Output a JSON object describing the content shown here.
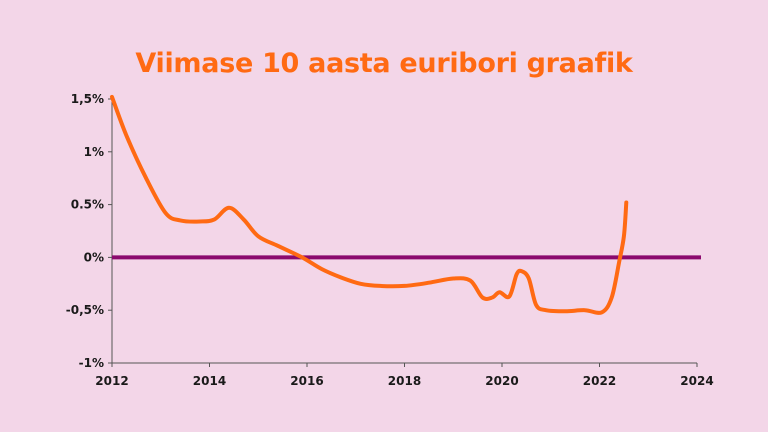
{
  "chart_data": {
    "type": "line",
    "title": "Viimase 10 aasta euribori graafik",
    "xlabel": "",
    "ylabel": "",
    "xlim": [
      2012,
      2024
    ],
    "ylim": [
      -1,
      1.5
    ],
    "x_ticks": [
      2012,
      2014,
      2016,
      2018,
      2020,
      2022,
      2024
    ],
    "x_tick_labels": [
      "2012",
      "2014",
      "2016",
      "2018",
      "2020",
      "2022",
      "2024"
    ],
    "y_ticks": [
      1.5,
      1,
      0.5,
      0,
      -0.5,
      -1
    ],
    "y_tick_labels": [
      "1,5%",
      "1%",
      "0.5%",
      "0%",
      "-0,5%",
      "-1%"
    ],
    "grid": false,
    "reference_line": {
      "y": 0,
      "color": "#8b0a6e"
    },
    "series": [
      {
        "color": "#ff6a13",
        "x": [
          2012.0,
          2012.3,
          2012.7,
          2013.1,
          2013.4,
          2013.8,
          2014.1,
          2014.4,
          2014.7,
          2015.0,
          2015.4,
          2015.9,
          2016.3,
          2016.7,
          2017.1,
          2017.5,
          2018.0,
          2018.5,
          2019.0,
          2019.35,
          2019.6,
          2019.8,
          2019.95,
          2020.15,
          2020.3,
          2020.4,
          2020.55,
          2020.7,
          2020.9,
          2021.3,
          2021.7,
          2022.05,
          2022.25,
          2022.4,
          2022.5,
          2022.55
        ],
        "y": [
          1.52,
          1.15,
          0.75,
          0.42,
          0.35,
          0.34,
          0.36,
          0.47,
          0.36,
          0.2,
          0.11,
          0.0,
          -0.11,
          -0.19,
          -0.25,
          -0.27,
          -0.27,
          -0.24,
          -0.2,
          -0.22,
          -0.38,
          -0.38,
          -0.33,
          -0.37,
          -0.16,
          -0.13,
          -0.2,
          -0.45,
          -0.5,
          -0.51,
          -0.5,
          -0.52,
          -0.38,
          -0.05,
          0.2,
          0.52
        ]
      }
    ]
  }
}
